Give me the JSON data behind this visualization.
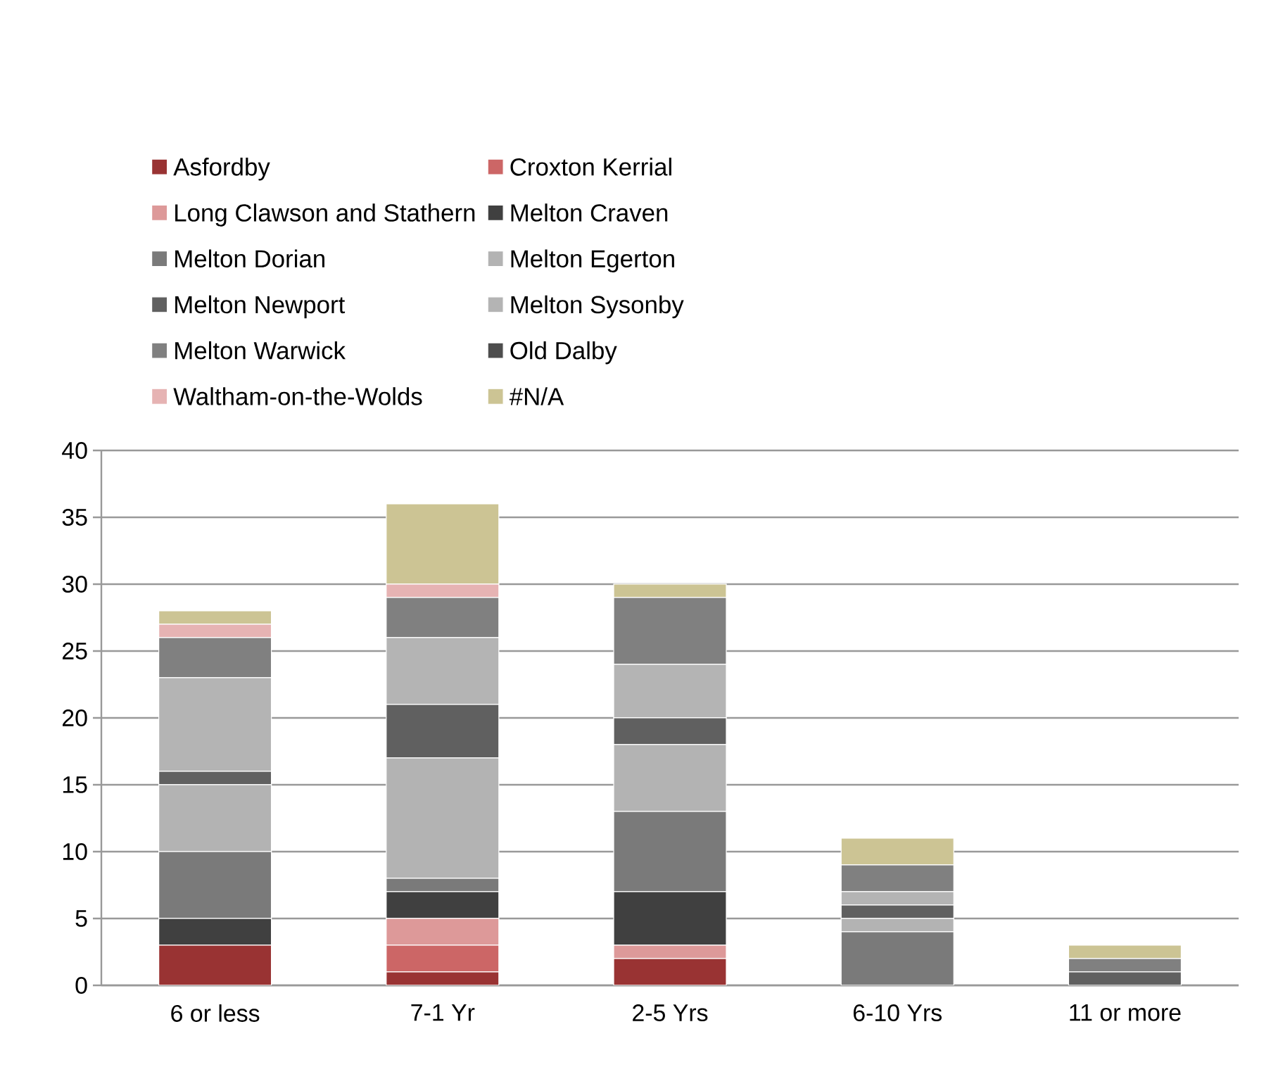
{
  "chart_data": {
    "type": "bar",
    "stacked": true,
    "categories": [
      "6 or less",
      "7-1 Yr",
      "2-5 Yrs",
      "6-10 Yrs",
      "11 or more"
    ],
    "series": [
      {
        "name": "Asfordby",
        "color": "#993333",
        "values": [
          3,
          1,
          2,
          0,
          0
        ]
      },
      {
        "name": "Croxton Kerrial",
        "color": "#cc6666",
        "values": [
          0,
          2,
          0,
          0,
          0
        ]
      },
      {
        "name": "Long Clawson and Stathern",
        "color": "#dd9999",
        "values": [
          0,
          2,
          1,
          0,
          0
        ]
      },
      {
        "name": "Melton Craven",
        "color": "#404040",
        "values": [
          2,
          2,
          4,
          0,
          0
        ]
      },
      {
        "name": "Melton Dorian",
        "color": "#7a7a7a",
        "values": [
          5,
          1,
          6,
          4,
          0
        ]
      },
      {
        "name": "Melton Egerton",
        "color": "#b3b3b3",
        "values": [
          5,
          9,
          5,
          1,
          0
        ]
      },
      {
        "name": "Melton Newport",
        "color": "#606060",
        "values": [
          1,
          4,
          2,
          1,
          1
        ]
      },
      {
        "name": "Melton Sysonby",
        "color": "#b4b4b4",
        "values": [
          7,
          5,
          4,
          1,
          0
        ]
      },
      {
        "name": "Melton Warwick",
        "color": "#808080",
        "values": [
          3,
          3,
          5,
          2,
          1
        ]
      },
      {
        "name": "Old Dalby",
        "color": "#4d4d4d",
        "values": [
          0,
          0,
          0,
          0,
          0
        ]
      },
      {
        "name": "Waltham-on-the-Wolds",
        "color": "#e6b3b3",
        "values": [
          1,
          1,
          0,
          0,
          0
        ]
      },
      {
        "name": "#N/A",
        "color": "#ccc494",
        "values": [
          1,
          6,
          1,
          2,
          1
        ]
      }
    ],
    "ylim": [
      0,
      40
    ],
    "yticks": [
      0,
      5,
      10,
      15,
      20,
      25,
      30,
      35,
      40
    ],
    "grid": "y",
    "legend": "top"
  }
}
